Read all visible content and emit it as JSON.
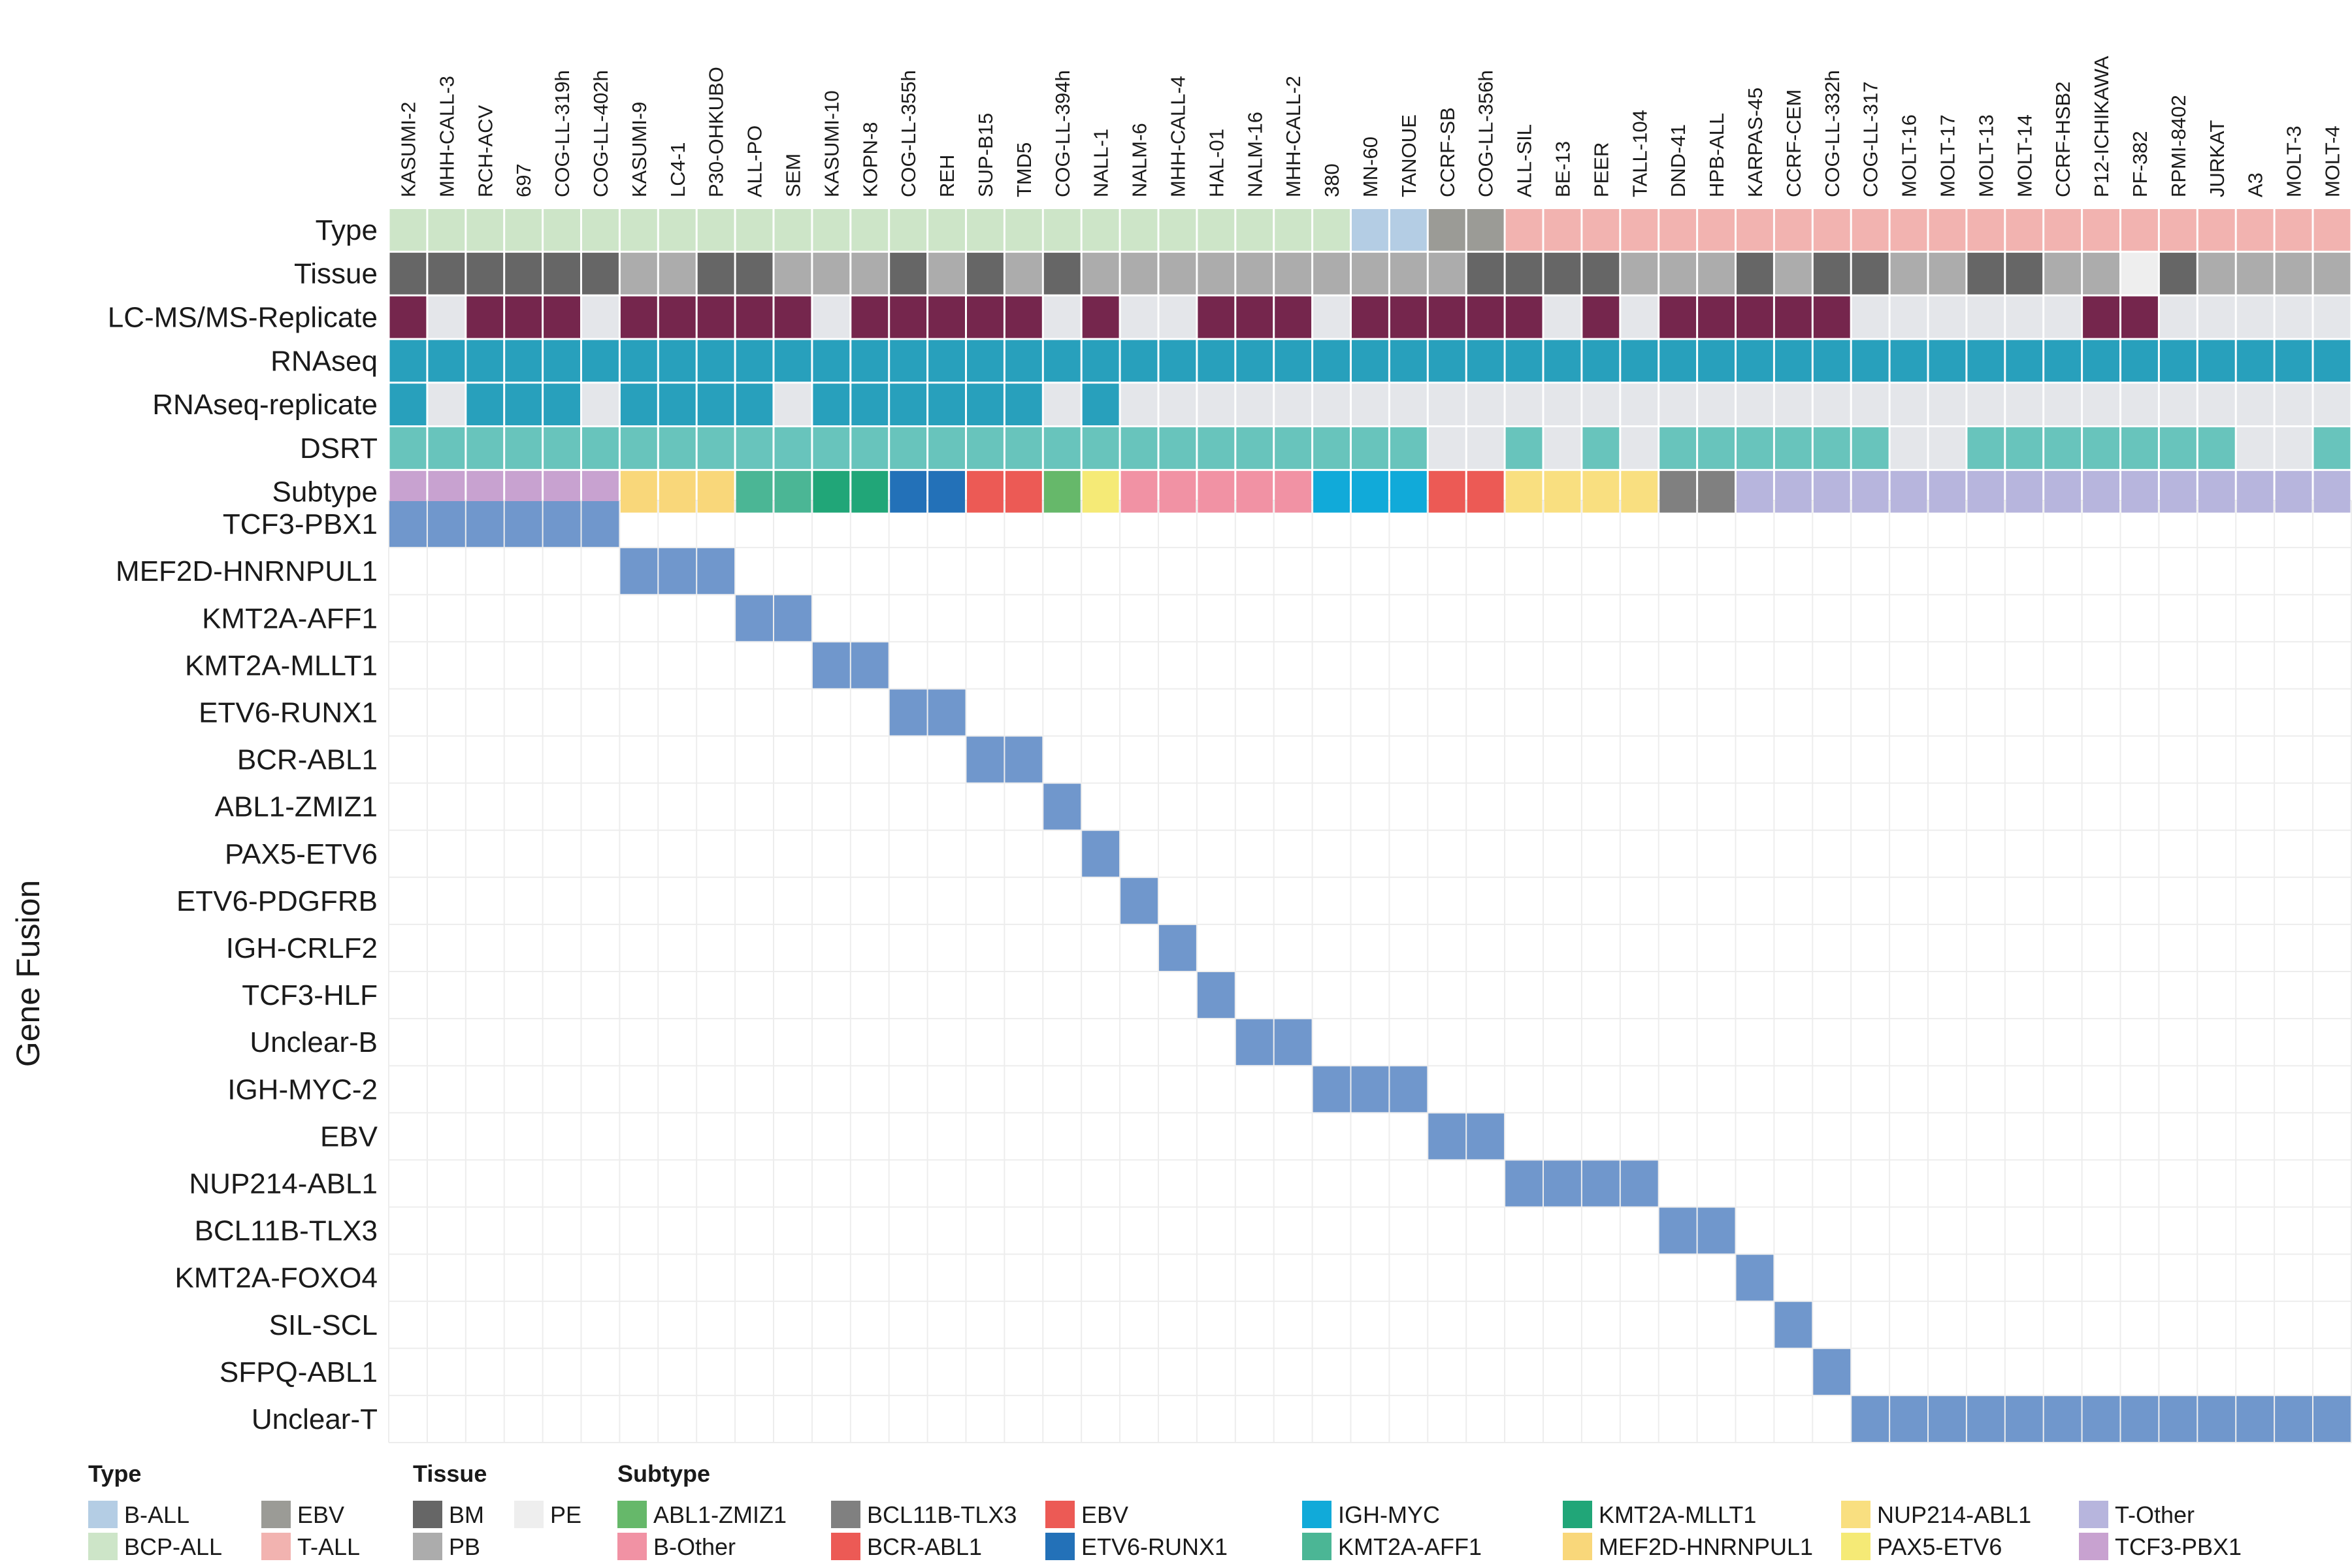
{
  "chart_data": {
    "type": "heatmap",
    "ylabel": "Gene Fusion",
    "cell_lines": [
      "KASUMI-2",
      "MHH-CALL-3",
      "RCH-ACV",
      "697",
      "COG-LL-319h",
      "COG-LL-402h",
      "KASUMI-9",
      "LC4-1",
      "P30-OHKUBO",
      "ALL-PO",
      "SEM",
      "KASUMI-10",
      "KOPN-8",
      "COG-LL-355h",
      "REH",
      "SUP-B15",
      "TMD5",
      "COG-LL-394h",
      "NALL-1",
      "NALM-6",
      "MHH-CALL-4",
      "HAL-01",
      "NALM-16",
      "MHH-CALL-2",
      "380",
      "MN-60",
      "TANOUE",
      "CCRF-SB",
      "COG-LL-356h",
      "ALL-SIL",
      "BE-13",
      "PEER",
      "TALL-104",
      "DND-41",
      "HPB-ALL",
      "KARPAS-45",
      "CCRF-CEM",
      "COG-LL-332h",
      "COG-LL-317",
      "MOLT-16",
      "MOLT-17",
      "MOLT-13",
      "MOLT-14",
      "CCRF-HSB2",
      "P12-ICHIKAWA",
      "PF-382",
      "RPMI-8402",
      "JURKAT",
      "A3",
      "MOLT-3",
      "MOLT-4"
    ],
    "annotation_rows": [
      {
        "label": "Type",
        "values": [
          "BCP-ALL",
          "BCP-ALL",
          "BCP-ALL",
          "BCP-ALL",
          "BCP-ALL",
          "BCP-ALL",
          "BCP-ALL",
          "BCP-ALL",
          "BCP-ALL",
          "BCP-ALL",
          "BCP-ALL",
          "BCP-ALL",
          "BCP-ALL",
          "BCP-ALL",
          "BCP-ALL",
          "BCP-ALL",
          "BCP-ALL",
          "BCP-ALL",
          "BCP-ALL",
          "BCP-ALL",
          "BCP-ALL",
          "BCP-ALL",
          "BCP-ALL",
          "BCP-ALL",
          "BCP-ALL",
          "B-ALL",
          "B-ALL",
          "EBV",
          "EBV",
          "T-ALL",
          "T-ALL",
          "T-ALL",
          "T-ALL",
          "T-ALL",
          "T-ALL",
          "T-ALL",
          "T-ALL",
          "T-ALL",
          "T-ALL",
          "T-ALL",
          "T-ALL",
          "T-ALL",
          "T-ALL",
          "T-ALL",
          "T-ALL",
          "T-ALL",
          "T-ALL",
          "T-ALL",
          "T-ALL",
          "T-ALL",
          "T-ALL"
        ]
      },
      {
        "label": "Tissue",
        "values": [
          "BM",
          "BM",
          "BM",
          "BM",
          "BM",
          "BM",
          "PB",
          "PB",
          "BM",
          "BM",
          "PB",
          "PB",
          "PB",
          "BM",
          "PB",
          "BM",
          "PB",
          "BM",
          "PB",
          "PB",
          "PB",
          "PB",
          "PB",
          "PB",
          "PB",
          "PB",
          "PB",
          "PB",
          "BM",
          "BM",
          "BM",
          "BM",
          "PB",
          "PB",
          "PB",
          "BM",
          "PB",
          "BM",
          "BM",
          "PB",
          "PB",
          "BM",
          "BM",
          "PB",
          "PB",
          "PE",
          "BM",
          "PB",
          "PB",
          "PB",
          "PB"
        ]
      },
      {
        "label": "LC-MS/MS-Replicate",
        "values": [
          1,
          0,
          1,
          1,
          1,
          0,
          1,
          1,
          1,
          1,
          1,
          0,
          1,
          1,
          1,
          1,
          1,
          0,
          1,
          0,
          0,
          1,
          1,
          1,
          0,
          1,
          1,
          1,
          1,
          1,
          0,
          1,
          0,
          1,
          1,
          1,
          1,
          1,
          0,
          0,
          0,
          0,
          0,
          0,
          1,
          1,
          0,
          0,
          0,
          0,
          0
        ]
      },
      {
        "label": "RNAseq",
        "values": [
          1,
          1,
          1,
          1,
          1,
          1,
          1,
          1,
          1,
          1,
          1,
          1,
          1,
          1,
          1,
          1,
          1,
          1,
          1,
          1,
          1,
          1,
          1,
          1,
          1,
          1,
          1,
          1,
          1,
          1,
          1,
          1,
          1,
          1,
          1,
          1,
          1,
          1,
          1,
          1,
          1,
          1,
          1,
          1,
          1,
          1,
          1,
          1,
          1,
          1,
          1
        ]
      },
      {
        "label": "RNAseq-replicate",
        "values": [
          1,
          0,
          1,
          1,
          1,
          0,
          1,
          1,
          1,
          1,
          0,
          1,
          1,
          1,
          1,
          1,
          1,
          0,
          1,
          0,
          0,
          0,
          0,
          0,
          0,
          0,
          0,
          0,
          0,
          0,
          0,
          0,
          0,
          0,
          0,
          0,
          0,
          0,
          0,
          0,
          0,
          0,
          0,
          0,
          0,
          0,
          0,
          0,
          0,
          0,
          0
        ]
      },
      {
        "label": "DSRT",
        "values": [
          1,
          1,
          1,
          1,
          1,
          1,
          1,
          1,
          1,
          1,
          1,
          1,
          1,
          1,
          1,
          1,
          1,
          1,
          1,
          1,
          1,
          1,
          1,
          1,
          1,
          1,
          1,
          0,
          0,
          1,
          0,
          1,
          0,
          1,
          1,
          1,
          1,
          1,
          1,
          0,
          0,
          1,
          1,
          1,
          1,
          1,
          1,
          1,
          0,
          0,
          1
        ]
      },
      {
        "label": "Subtype",
        "values": [
          "TCF3-PBX1",
          "TCF3-PBX1",
          "TCF3-PBX1",
          "TCF3-PBX1",
          "TCF3-PBX1",
          "TCF3-PBX1",
          "MEF2D-HNRNPUL1",
          "MEF2D-HNRNPUL1",
          "MEF2D-HNRNPUL1",
          "KMT2A-AFF1",
          "KMT2A-AFF1",
          "KMT2A-MLLT1",
          "KMT2A-MLLT1",
          "ETV6-RUNX1",
          "ETV6-RUNX1",
          "BCR-ABL1",
          "BCR-ABL1",
          "ABL1-ZMIZ1",
          "PAX5-ETV6",
          "B-Other",
          "B-Other",
          "B-Other",
          "B-Other",
          "B-Other",
          "IGH-MYC",
          "IGH-MYC",
          "IGH-MYC",
          "EBV",
          "EBV",
          "NUP214-ABL1",
          "NUP214-ABL1",
          "NUP214-ABL1",
          "NUP214-ABL1",
          "BCL11B-TLX3",
          "BCL11B-TLX3",
          "T-Other",
          "T-Other",
          "T-Other",
          "T-Other",
          "T-Other",
          "T-Other",
          "T-Other",
          "T-Other",
          "T-Other",
          "T-Other",
          "T-Other",
          "T-Other",
          "T-Other",
          "T-Other",
          "T-Other",
          "T-Other"
        ]
      }
    ],
    "fusion_rows": [
      {
        "label": "TCF3-PBX1",
        "start": 0,
        "count": 6
      },
      {
        "label": "MEF2D-HNRNPUL1",
        "start": 6,
        "count": 3
      },
      {
        "label": "KMT2A-AFF1",
        "start": 9,
        "count": 2
      },
      {
        "label": "KMT2A-MLLT1",
        "start": 11,
        "count": 2
      },
      {
        "label": "ETV6-RUNX1",
        "start": 13,
        "count": 2
      },
      {
        "label": "BCR-ABL1",
        "start": 15,
        "count": 2
      },
      {
        "label": "ABL1-ZMIZ1",
        "start": 17,
        "count": 1
      },
      {
        "label": "PAX5-ETV6",
        "start": 18,
        "count": 1
      },
      {
        "label": "ETV6-PDGFRB",
        "start": 19,
        "count": 1
      },
      {
        "label": "IGH-CRLF2",
        "start": 20,
        "count": 1
      },
      {
        "label": "TCF3-HLF",
        "start": 21,
        "count": 1
      },
      {
        "label": "Unclear-B",
        "start": 22,
        "count": 2
      },
      {
        "label": "IGH-MYC-2",
        "start": 24,
        "count": 3
      },
      {
        "label": "EBV",
        "start": 27,
        "count": 2
      },
      {
        "label": "NUP214-ABL1",
        "start": 29,
        "count": 4
      },
      {
        "label": "BCL11B-TLX3",
        "start": 33,
        "count": 2
      },
      {
        "label": "KMT2A-FOXO4",
        "start": 35,
        "count": 1
      },
      {
        "label": "SIL-SCL",
        "start": 36,
        "count": 1
      },
      {
        "label": "SFPQ-ABL1",
        "start": 37,
        "count": 1
      },
      {
        "label": "Unclear-T",
        "start": 38,
        "count": 13
      }
    ],
    "colors": {
      "Type": {
        "B-ALL": "#b4cde4",
        "BCP-ALL": "#cde5c8",
        "EBV": "#9b9b96",
        "T-ALL": "#f2b3b0"
      },
      "Tissue": {
        "BM": "#666666",
        "PB": "#acacac",
        "PE": "#eeeeee"
      },
      "LC-MS/MS-Replicate": {
        "1": "#75264d",
        "0": "#e4e6ea"
      },
      "RNAseq": {
        "1": "#28a0bc",
        "0": "#e4e6ea"
      },
      "RNAseq-replicate": {
        "1": "#28a0bc",
        "0": "#e4e6ea"
      },
      "DSRT": {
        "1": "#68c4bc",
        "0": "#e4e6ea"
      },
      "Subtype": {
        "ABL1-ZMIZ1": "#66b86a",
        "B-Other": "#f192a4",
        "BCL11B-TLX3": "#808080",
        "BCR-ABL1": "#ec5a55",
        "EBV": "#ec5a55",
        "ETV6-RUNX1": "#2371b8",
        "IGH-MYC": "#11aad9",
        "KMT2A-AFF1": "#4bb695",
        "KMT2A-MLLT1": "#21a678",
        "MEF2D-HNRNPUL1": "#f9d77a",
        "NUP214-ABL1": "#f9df80",
        "PAX5-ETV6": "#f5ea76",
        "T-Other": "#b7b5dd",
        "TCF3-PBX1": "#c8a2d0"
      },
      "fusion": "#7097cc",
      "empty": "#ffffff",
      "grid": "#ededed"
    },
    "legend": [
      {
        "title": "Type",
        "columns": [
          [
            {
              "label": "B-ALL",
              "color": "#b4cde4"
            },
            {
              "label": "BCP-ALL",
              "color": "#cde5c8"
            }
          ],
          [
            {
              "label": "EBV",
              "color": "#9b9b96"
            },
            {
              "label": "T-ALL",
              "color": "#f2b3b0"
            }
          ]
        ]
      },
      {
        "title": "Tissue",
        "columns": [
          [
            {
              "label": "BM",
              "color": "#666666"
            },
            {
              "label": "PB",
              "color": "#acacac"
            }
          ],
          [
            {
              "label": "PE",
              "color": "#eeeeee"
            }
          ]
        ]
      },
      {
        "title": "Subtype",
        "columns": [
          [
            {
              "label": "ABL1-ZMIZ1",
              "color": "#66b86a"
            },
            {
              "label": "B-Other",
              "color": "#f192a4"
            }
          ],
          [
            {
              "label": "BCL11B-TLX3",
              "color": "#808080"
            },
            {
              "label": "BCR-ABL1",
              "color": "#ec5a55"
            }
          ],
          [
            {
              "label": "EBV",
              "color": "#ec5a55"
            },
            {
              "label": "ETV6-RUNX1",
              "color": "#2371b8"
            }
          ],
          [
            {
              "label": "IGH-MYC",
              "color": "#11aad9"
            },
            {
              "label": "KMT2A-AFF1",
              "color": "#4bb695"
            }
          ],
          [
            {
              "label": "KMT2A-MLLT1",
              "color": "#21a678"
            },
            {
              "label": "MEF2D-HNRNPUL1",
              "color": "#f9d77a"
            }
          ],
          [
            {
              "label": "NUP214-ABL1",
              "color": "#f9df80"
            },
            {
              "label": "PAX5-ETV6",
              "color": "#f5ea76"
            }
          ],
          [
            {
              "label": "T-Other",
              "color": "#b7b5dd"
            },
            {
              "label": "TCF3-PBX1",
              "color": "#c8a2d0"
            }
          ]
        ]
      }
    ]
  }
}
